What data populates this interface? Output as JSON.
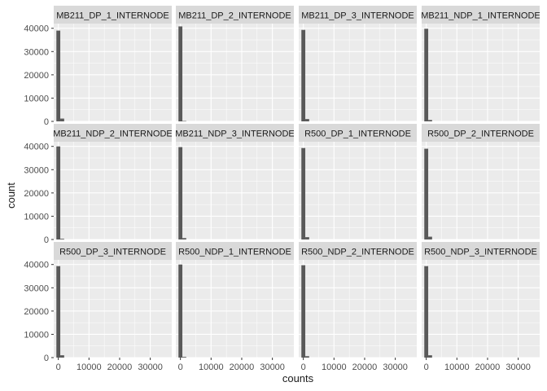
{
  "chart_data": {
    "type": "bar",
    "facet_layout": {
      "rows": 3,
      "cols": 4
    },
    "xlabel": "counts",
    "ylabel": "count",
    "xlim": [
      -1500,
      37000
    ],
    "ylim": [
      0,
      42000
    ],
    "x_ticks": [
      0,
      10000,
      20000,
      30000
    ],
    "x_tick_labels": [
      "0",
      "10000",
      "20000",
      "30000"
    ],
    "y_ticks": [
      0,
      10000,
      20000,
      30000,
      40000
    ],
    "y_tick_labels": [
      "0",
      "10000",
      "20000",
      "30000",
      "40000"
    ],
    "bin_width": 1270,
    "grid": true,
    "colors": {
      "panel_bg": "#EBEBEB",
      "strip_bg": "#D9D9D9",
      "bar": "#595959",
      "grid": "#FFFFFF",
      "text": "#1A1A1A",
      "axis_text": "#4D4D4D"
    },
    "panels": [
      {
        "strip": "MB211_DP_1_INTERNODE",
        "bars": [
          {
            "x": 0,
            "count": 39000
          },
          {
            "x": 1270,
            "count": 1200
          }
        ]
      },
      {
        "strip": "MB211_DP_2_INTERNODE",
        "bars": [
          {
            "x": 0,
            "count": 40800
          },
          {
            "x": 1270,
            "count": 150
          }
        ]
      },
      {
        "strip": "MB211_DP_3_INTERNODE",
        "bars": [
          {
            "x": 0,
            "count": 39300
          },
          {
            "x": 1270,
            "count": 1000
          }
        ]
      },
      {
        "strip": "MB211_NDP_1_INTERNODE",
        "bars": [
          {
            "x": 0,
            "count": 39800
          },
          {
            "x": 1270,
            "count": 600
          }
        ]
      },
      {
        "strip": "MB211_NDP_2_INTERNODE",
        "bars": [
          {
            "x": 0,
            "count": 40000
          },
          {
            "x": 1270,
            "count": 300
          }
        ]
      },
      {
        "strip": "MB211_NDP_3_INTERNODE",
        "bars": [
          {
            "x": 0,
            "count": 39700
          },
          {
            "x": 1270,
            "count": 600
          }
        ]
      },
      {
        "strip": "R500_DP_1_INTERNODE",
        "bars": [
          {
            "x": 0,
            "count": 39300
          },
          {
            "x": 1270,
            "count": 1000
          }
        ]
      },
      {
        "strip": "R500_DP_2_INTERNODE",
        "bars": [
          {
            "x": 0,
            "count": 39000
          },
          {
            "x": 1270,
            "count": 1200
          }
        ]
      },
      {
        "strip": "R500_DP_3_INTERNODE",
        "bars": [
          {
            "x": 0,
            "count": 39300
          },
          {
            "x": 1270,
            "count": 1000
          }
        ]
      },
      {
        "strip": "R500_NDP_1_INTERNODE",
        "bars": [
          {
            "x": 0,
            "count": 40000
          },
          {
            "x": 1270,
            "count": 300
          }
        ]
      },
      {
        "strip": "R500_NDP_2_INTERNODE",
        "bars": [
          {
            "x": 0,
            "count": 39700
          },
          {
            "x": 1270,
            "count": 600
          }
        ]
      },
      {
        "strip": "R500_NDP_3_INTERNODE",
        "bars": [
          {
            "x": 0,
            "count": 39300
          },
          {
            "x": 1270,
            "count": 1000
          }
        ]
      }
    ]
  }
}
